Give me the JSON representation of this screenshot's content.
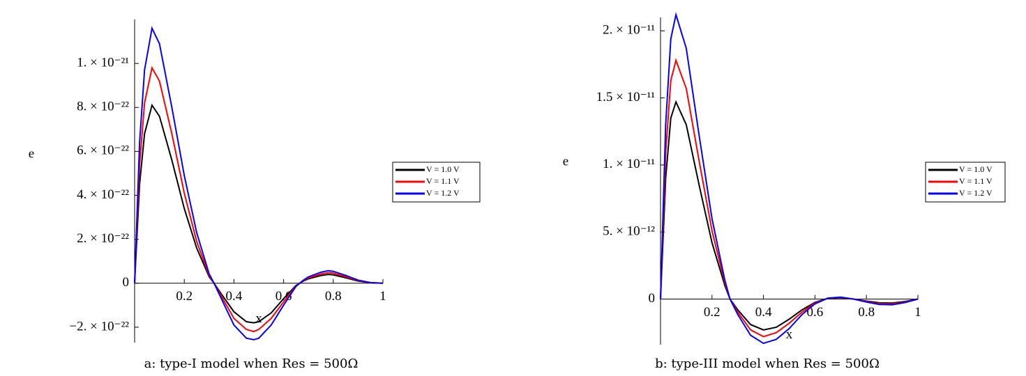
{
  "chart_data": [
    {
      "type": "line",
      "caption": "a: type-I model when Res = 500Ω",
      "xlabel": "x",
      "ylabel": "e",
      "legend": "right",
      "x": [
        0,
        0.02,
        0.04,
        0.07,
        0.1,
        0.15,
        0.2,
        0.25,
        0.3,
        0.32,
        0.35,
        0.4,
        0.45,
        0.48,
        0.5,
        0.55,
        0.6,
        0.65,
        0.68,
        0.7,
        0.75,
        0.78,
        0.8,
        0.85,
        0.9,
        0.95,
        1
      ],
      "series": [
        {
          "name": "V = 1.0 V",
          "color": "#000000",
          "values": [
            0,
            4.5e-22,
            6.8e-22,
            8.1e-22,
            7.6e-22,
            5.6e-22,
            3.4e-22,
            1.6e-22,
            3e-23,
            0,
            -5e-23,
            -1.3e-22,
            -1.75e-22,
            -1.8e-22,
            -1.75e-22,
            -1.35e-22,
            -7e-23,
            -1e-23,
            1e-23,
            2e-23,
            3.5e-23,
            4e-23,
            3.8e-23,
            2.5e-23,
            1e-23,
            2e-24,
            0
          ]
        },
        {
          "name": "V = 1.1 V",
          "color": "#ff0000",
          "values": [
            0,
            5.4e-22,
            8.2e-22,
            9.8e-22,
            9.2e-22,
            6.8e-22,
            4.1e-22,
            1.9e-22,
            3.6e-23,
            0,
            -6e-23,
            -1.6e-22,
            -2.1e-22,
            -2.2e-22,
            -2.1e-22,
            -1.6e-22,
            -8.5e-23,
            -1.2e-23,
            1.2e-23,
            2.4e-23,
            4.2e-23,
            4.8e-23,
            4.6e-23,
            3e-23,
            1.2e-23,
            2.4e-24,
            0
          ]
        },
        {
          "name": "V = 1.2 V",
          "color": "#0000ff",
          "values": [
            0,
            6.4e-22,
            9.7e-22,
            1.16e-21,
            1.09e-21,
            8e-22,
            4.9e-22,
            2.3e-22,
            4.3e-23,
            0,
            -7.2e-23,
            -1.9e-22,
            -2.5e-22,
            -2.57e-22,
            -2.5e-22,
            -1.9e-22,
            -1e-22,
            -1.4e-23,
            1.4e-23,
            2.9e-23,
            5e-23,
            5.7e-23,
            5.4e-23,
            3.6e-23,
            1.4e-23,
            3e-24,
            0
          ]
        }
      ],
      "xlim": [
        0,
        1
      ],
      "xticks": [
        0.2,
        0.4,
        0.6,
        0.8,
        1
      ],
      "ylim": [
        -2.7e-22,
        1.2e-21
      ],
      "yticks": [
        {
          "value": -2e-22,
          "label": "−2. × 10⁻²²"
        },
        0,
        {
          "value": 2e-22,
          "label": "2. × 10⁻²²"
        },
        {
          "value": 4e-22,
          "label": "4. × 10⁻²²"
        },
        {
          "value": 6e-22,
          "label": "6. × 10⁻²²"
        },
        {
          "value": 8e-22,
          "label": "8. × 10⁻²²"
        },
        {
          "value": 1e-21,
          "label": "1. × 10⁻²¹"
        }
      ]
    },
    {
      "type": "line",
      "caption": "b: type-III model when Res = 500Ω",
      "xlabel": "x",
      "ylabel": "e",
      "legend": "right",
      "x": [
        0,
        0.02,
        0.04,
        0.06,
        0.1,
        0.15,
        0.2,
        0.25,
        0.27,
        0.3,
        0.35,
        0.4,
        0.45,
        0.5,
        0.55,
        0.6,
        0.65,
        0.7,
        0.75,
        0.8,
        0.85,
        0.9,
        0.95,
        1
      ],
      "series": [
        {
          "name": "V = 1.0 V",
          "color": "#000000",
          "values": [
            0,
            9e-12,
            1.35e-11,
            1.47e-11,
            1.3e-11,
            8.5e-12,
            4.2e-12,
            1e-12,
            0,
            -8e-13,
            -1.9e-12,
            -2.3e-12,
            -2.1e-12,
            -1.5e-12,
            -8e-13,
            -2.5e-13,
            5e-14,
            1e-13,
            0,
            -1.5e-13,
            -2.8e-13,
            -3e-13,
            -1.8e-13,
            0
          ]
        },
        {
          "name": "V = 1.1 V",
          "color": "#ff0000",
          "values": [
            0,
            1.09e-11,
            1.63e-11,
            1.78e-11,
            1.57e-11,
            1.03e-11,
            5.1e-12,
            1.2e-12,
            0,
            -9.7e-13,
            -2.3e-12,
            -2.8e-12,
            -2.5e-12,
            -1.8e-12,
            -9.7e-13,
            -3e-13,
            6e-14,
            1.2e-13,
            0,
            -1.8e-13,
            -3.4e-13,
            -3.6e-13,
            -2.2e-13,
            0
          ]
        },
        {
          "name": "V = 1.2 V",
          "color": "#0000ff",
          "values": [
            0,
            1.3e-11,
            1.94e-11,
            2.12e-11,
            1.87e-11,
            1.22e-11,
            6e-12,
            1.4e-12,
            0,
            -1.15e-12,
            -2.7e-12,
            -3.3e-12,
            -3e-12,
            -2.2e-12,
            -1.15e-12,
            -3.6e-13,
            7e-14,
            1.4e-13,
            0,
            -2.2e-13,
            -4e-13,
            -4.3e-13,
            -2.6e-13,
            0
          ]
        }
      ],
      "xlim": [
        0,
        1
      ],
      "xticks": [
        0.2,
        0.4,
        0.6,
        0.8,
        1
      ],
      "ylim": [
        -3.4e-12,
        2.1e-11
      ],
      "yticks": [
        0,
        {
          "value": 5e-12,
          "label": "5. × 10⁻¹²"
        },
        {
          "value": 1e-11,
          "label": "1. × 10⁻¹¹"
        },
        {
          "value": 1.5e-11,
          "label": "1.5 × 10⁻¹¹"
        },
        {
          "value": 2e-11,
          "label": "2. × 10⁻¹¹"
        }
      ]
    }
  ]
}
